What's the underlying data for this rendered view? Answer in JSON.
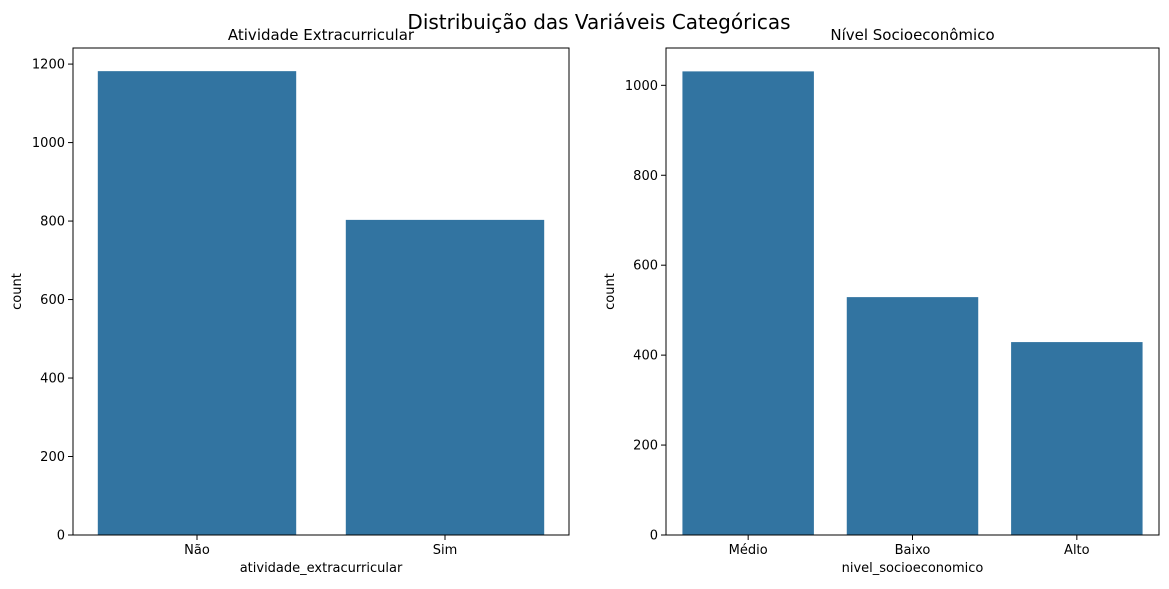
{
  "figure": {
    "suptitle": "Distribuição das Variáveis Categóricas"
  },
  "chart_data": [
    {
      "type": "bar",
      "title": "Atividade Extracurricular",
      "xlabel": "atividade_extracurricular",
      "ylabel": "count",
      "categories": [
        "Não",
        "Sim"
      ],
      "values": [
        1182,
        803
      ],
      "ylim": [
        0,
        1241
      ],
      "yticks": [
        0,
        200,
        400,
        600,
        800,
        1000,
        1200
      ],
      "bar_color": "#3274a1",
      "grid": false
    },
    {
      "type": "bar",
      "title": "Nível Socioeconômico",
      "xlabel": "nivel_socioeconomico",
      "ylabel": "count",
      "categories": [
        "Médio",
        "Baixo",
        "Alto"
      ],
      "values": [
        1031,
        529,
        429
      ],
      "ylim": [
        0,
        1083
      ],
      "yticks": [
        0,
        200,
        400,
        600,
        800,
        1000
      ],
      "bar_color": "#3274a1",
      "grid": false
    }
  ]
}
